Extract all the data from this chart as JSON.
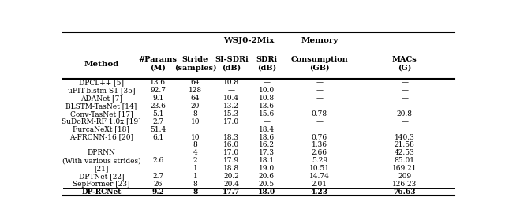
{
  "col_headers_row1": [
    "",
    "",
    "",
    "WSJ0-2Mix",
    "",
    "Memory",
    ""
  ],
  "col_headers_row2": [
    "Method",
    "#Params\n(M)",
    "Stride\n(samples)",
    "SI-SDRi\n(dB)",
    "SDRi\n(dB)",
    "Consumption\n(GB)",
    "MACs\n(G)"
  ],
  "group_header_wsj": "WSJ0-2Mix",
  "rows": [
    [
      "DPCL++ [5]",
      "13.6",
      "64",
      "10.8",
      "—",
      "—",
      "—"
    ],
    [
      "uPIT-blstm-ST [35]",
      "92.7",
      "128",
      "—",
      "10.0",
      "—",
      "—"
    ],
    [
      "ADANet [7]",
      "9.1",
      "64",
      "10.4",
      "10.8",
      "—",
      "—"
    ],
    [
      "BLSTM-TasNet [14]",
      "23.6",
      "20",
      "13.2",
      "13.6",
      "—",
      "—"
    ],
    [
      "Conv-TasNet [17]",
      "5.1",
      "8",
      "15.3",
      "15.6",
      "0.78",
      "20.8"
    ],
    [
      "SuDoRM-RF 1.0x [19]",
      "2.7",
      "10",
      "17.0",
      "—",
      "—",
      "—"
    ],
    [
      "FurcaNeXt [18]",
      "51.4",
      "—",
      "—",
      "18.4",
      "—",
      "—"
    ],
    [
      "A-FRCNN-16 [20]",
      "6.1",
      "10",
      "18.3",
      "18.6",
      "0.76",
      "140.3"
    ],
    [
      "",
      "",
      "8",
      "16.0",
      "16.2",
      "1.36",
      "21.58"
    ],
    [
      "DPRNN",
      "2.6",
      "4",
      "17.0",
      "17.3",
      "2.66",
      "42.53"
    ],
    [
      "(With various strides)",
      "",
      "2",
      "17.9",
      "18.1",
      "5.29",
      "85.01"
    ],
    [
      "[21]",
      "",
      "1",
      "18.8",
      "19.0",
      "10.51",
      "169.21"
    ],
    [
      "DPTNet [22]",
      "2.7",
      "1",
      "20.2",
      "20.6",
      "14.74",
      "209"
    ],
    [
      "SepFormer [23]",
      "26",
      "8",
      "20.4",
      "20.5",
      "2.01",
      "126.23"
    ],
    [
      "DP-RCNet",
      "9.2",
      "8",
      "17.7",
      "18.0",
      "4.23",
      "76.63"
    ]
  ],
  "bg_color": "#ffffff",
  "text_color": "#000000",
  "line_color": "#000000"
}
